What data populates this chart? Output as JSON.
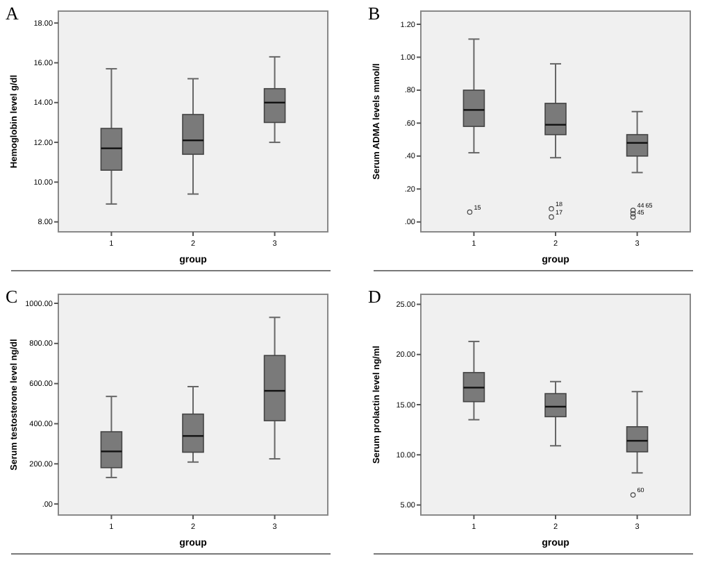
{
  "chart_data": [
    {
      "type": "box",
      "title": "A",
      "xlabel": "group",
      "ylabel": "Hemoglobin level g/dl",
      "categories": [
        "1",
        "2",
        "3"
      ],
      "color": "#7a7a7a",
      "ylim": [
        7.5,
        18.6
      ],
      "yticks": [
        {
          "value": 8,
          "label": "8.00"
        },
        {
          "value": 10,
          "label": "10.00"
        },
        {
          "value": 12,
          "label": "12.00"
        },
        {
          "value": 14,
          "label": "14.00"
        },
        {
          "value": 16,
          "label": "16.00"
        },
        {
          "value": 18,
          "label": "18.00"
        }
      ],
      "boxes": [
        {
          "low": 8.9,
          "q1": 10.6,
          "median": 11.7,
          "q3": 12.7,
          "high": 15.7
        },
        {
          "low": 9.4,
          "q1": 11.4,
          "median": 12.1,
          "q3": 13.4,
          "high": 15.2
        },
        {
          "low": 12.0,
          "q1": 13.0,
          "median": 14.0,
          "q3": 14.7,
          "high": 16.3
        }
      ]
    },
    {
      "type": "box",
      "title": "B",
      "xlabel": "group",
      "ylabel": "Serum ADMA levels mmol/l",
      "categories": [
        "1",
        "2",
        "3"
      ],
      "color": "#7a7a7a",
      "ylim": [
        -0.06,
        1.28
      ],
      "yticks": [
        {
          "value": 0,
          "label": ".00"
        },
        {
          "value": 0.2,
          "label": ".20"
        },
        {
          "value": 0.4,
          "label": ".40"
        },
        {
          "value": 0.6,
          "label": ".60"
        },
        {
          "value": 0.8,
          "label": ".80"
        },
        {
          "value": 1,
          "label": "1.00"
        },
        {
          "value": 1.2,
          "label": "1.20"
        }
      ],
      "boxes": [
        {
          "low": 0.42,
          "q1": 0.58,
          "median": 0.68,
          "q3": 0.8,
          "high": 1.11
        },
        {
          "low": 0.39,
          "q1": 0.53,
          "median": 0.59,
          "q3": 0.72,
          "high": 0.96
        },
        {
          "low": 0.3,
          "q1": 0.4,
          "median": 0.48,
          "q3": 0.53,
          "high": 0.67
        }
      ],
      "series": [
        {
          "type": "scatter",
          "color": "#444444",
          "x": [
            "1",
            "2",
            "2",
            "3",
            "3",
            "3"
          ],
          "values": [
            0.06,
            0.08,
            0.03,
            0.07,
            0.05,
            0.03
          ]
        }
      ],
      "annotations": [
        {
          "text": "15",
          "x": "1",
          "y": 0.06
        },
        {
          "text": "18",
          "x": "2",
          "y": 0.08
        },
        {
          "text": "17",
          "x": "2",
          "y": 0.03
        },
        {
          "text": "44",
          "x": "3",
          "y": 0.07
        },
        {
          "text": "65",
          "x": "3",
          "y": 0.07
        },
        {
          "text": "45",
          "x": "3",
          "y": 0.03
        }
      ]
    },
    {
      "type": "box",
      "title": "C",
      "xlabel": "group",
      "ylabel": "Serum testosterone level ng/dl",
      "categories": [
        "1",
        "2",
        "3"
      ],
      "color": "#7a7a7a",
      "ylim": [
        -55,
        1045
      ],
      "yticks": [
        {
          "value": 0,
          "label": ".00"
        },
        {
          "value": 200,
          "label": "200.00"
        },
        {
          "value": 400,
          "label": "400.00"
        },
        {
          "value": 600,
          "label": "600.00"
        },
        {
          "value": 800,
          "label": "800.00"
        },
        {
          "value": 1000,
          "label": "1000.00"
        }
      ],
      "boxes": [
        {
          "low": 132,
          "q1": 181,
          "median": 262,
          "q3": 360,
          "high": 536
        },
        {
          "low": 209,
          "q1": 258,
          "median": 339,
          "q3": 448,
          "high": 585
        },
        {
          "low": 225,
          "q1": 415,
          "median": 564,
          "q3": 740,
          "high": 930
        }
      ]
    },
    {
      "type": "box",
      "title": "D",
      "xlabel": "group",
      "ylabel": "Serum prolactin level ng/ml",
      "categories": [
        "1",
        "2",
        "3"
      ],
      "color": "#7a7a7a",
      "ylim": [
        4,
        26
      ],
      "yticks": [
        {
          "value": 5,
          "label": "5.00"
        },
        {
          "value": 10,
          "label": "10.00"
        },
        {
          "value": 15,
          "label": "15.00"
        },
        {
          "value": 20,
          "label": "20.00"
        },
        {
          "value": 25,
          "label": "25.00"
        }
      ],
      "boxes": [
        {
          "low": 13.5,
          "q1": 15.3,
          "median": 16.7,
          "q3": 18.2,
          "high": 21.3
        },
        {
          "low": 10.9,
          "q1": 13.8,
          "median": 14.8,
          "q3": 16.1,
          "high": 17.3
        },
        {
          "low": 8.2,
          "q1": 10.3,
          "median": 11.4,
          "q3": 12.8,
          "high": 16.3
        }
      ],
      "series": [
        {
          "type": "scatter",
          "color": "#444444",
          "x": [
            "3"
          ],
          "values": [
            6.0
          ]
        }
      ],
      "annotations": [
        {
          "text": "60",
          "x": "3",
          "y": 6.0
        }
      ]
    }
  ]
}
